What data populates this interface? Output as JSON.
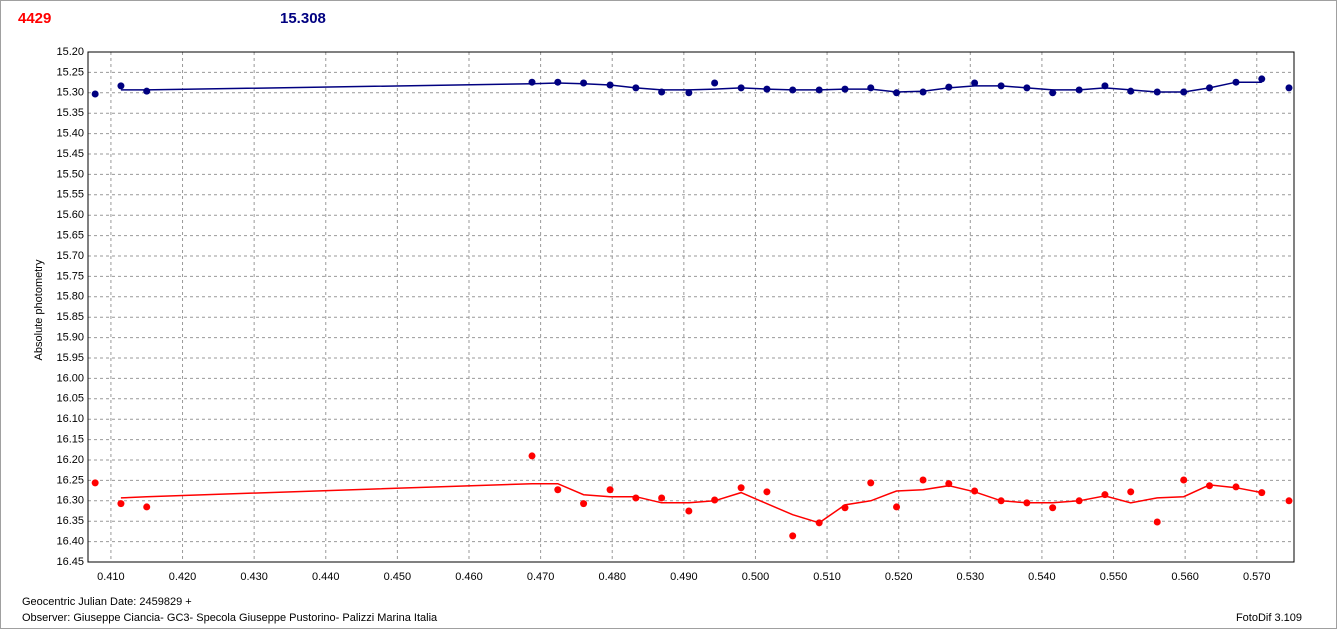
{
  "chart_data": {
    "type": "line",
    "title": "4429",
    "subtitle": "15.308",
    "y_label": "Absolute photometry",
    "x_label": "Geocentric Julian Date: 2459829 +",
    "observer": "Observer: Giuseppe Ciancia- GC3- Specola Giuseppe Pustorino- Palizzi Marina Italia",
    "software": "FotoDif 3.109",
    "grid": true,
    "y_inverted": true,
    "xlim": [
      0.4068,
      0.5752
    ],
    "ylim": [
      15.2,
      16.45
    ],
    "xticks": [
      {
        "value": 0.41,
        "label": "0.410"
      },
      {
        "value": 0.42,
        "label": "0.420"
      },
      {
        "value": 0.43,
        "label": "0.430"
      },
      {
        "value": 0.44,
        "label": "0.440"
      },
      {
        "value": 0.45,
        "label": "0.450"
      },
      {
        "value": 0.46,
        "label": "0.460"
      },
      {
        "value": 0.47,
        "label": "0.470"
      },
      {
        "value": 0.48,
        "label": "0.480"
      },
      {
        "value": 0.49,
        "label": "0.490"
      },
      {
        "value": 0.5,
        "label": "0.500"
      },
      {
        "value": 0.51,
        "label": "0.510"
      },
      {
        "value": 0.52,
        "label": "0.520"
      },
      {
        "value": 0.53,
        "label": "0.530"
      },
      {
        "value": 0.54,
        "label": "0.540"
      },
      {
        "value": 0.55,
        "label": "0.550"
      },
      {
        "value": 0.56,
        "label": "0.560"
      },
      {
        "value": 0.57,
        "label": "0.570"
      }
    ],
    "yticks": [
      {
        "value": 15.2,
        "label": "15.20"
      },
      {
        "value": 15.25,
        "label": "15.25"
      },
      {
        "value": 15.3,
        "label": "15.30"
      },
      {
        "value": 15.35,
        "label": "15.35"
      },
      {
        "value": 15.4,
        "label": "15.40"
      },
      {
        "value": 15.45,
        "label": "15.45"
      },
      {
        "value": 15.5,
        "label": "15.50"
      },
      {
        "value": 15.55,
        "label": "15.55"
      },
      {
        "value": 15.6,
        "label": "15.60"
      },
      {
        "value": 15.65,
        "label": "15.65"
      },
      {
        "value": 15.7,
        "label": "15.70"
      },
      {
        "value": 15.75,
        "label": "15.75"
      },
      {
        "value": 15.8,
        "label": "15.80"
      },
      {
        "value": 15.85,
        "label": "15.85"
      },
      {
        "value": 15.9,
        "label": "15.90"
      },
      {
        "value": 15.95,
        "label": "15.95"
      },
      {
        "value": 16.0,
        "label": "16.00"
      },
      {
        "value": 16.05,
        "label": "16.05"
      },
      {
        "value": 16.1,
        "label": "16.10"
      },
      {
        "value": 16.15,
        "label": "16.15"
      },
      {
        "value": 16.2,
        "label": "16.20"
      },
      {
        "value": 16.25,
        "label": "16.25"
      },
      {
        "value": 16.3,
        "label": "16.30"
      },
      {
        "value": 16.35,
        "label": "16.35"
      },
      {
        "value": 16.4,
        "label": "16.40"
      },
      {
        "value": 16.45,
        "label": "16.45"
      }
    ],
    "x": [
      0.4078,
      0.4114,
      0.415,
      0.4688,
      0.4724,
      0.476,
      0.4797,
      0.4833,
      0.4869,
      0.4907,
      0.4943,
      0.498,
      0.5016,
      0.5052,
      0.5089,
      0.5125,
      0.5161,
      0.5197,
      0.5234,
      0.527,
      0.5306,
      0.5343,
      0.5379,
      0.5415,
      0.5452,
      0.5488,
      0.5524,
      0.5561,
      0.5598,
      0.5634,
      0.5671,
      0.5707,
      0.5745
    ],
    "series": [
      {
        "color": "#000080",
        "values": [
          15.303,
          15.283,
          15.296,
          15.274,
          15.274,
          15.276,
          15.281,
          15.288,
          15.298,
          15.3,
          15.276,
          15.288,
          15.291,
          15.293,
          15.293,
          15.291,
          15.288,
          15.3,
          15.298,
          15.286,
          15.276,
          15.283,
          15.288,
          15.3,
          15.293,
          15.283,
          15.296,
          15.298,
          15.298,
          15.288,
          15.274,
          15.266,
          15.288
        ],
        "trend": [
          null,
          15.293,
          15.293,
          15.278,
          15.276,
          15.278,
          15.281,
          15.288,
          15.293,
          15.293,
          15.291,
          15.288,
          15.291,
          15.293,
          15.293,
          15.291,
          15.291,
          15.298,
          15.296,
          15.288,
          15.283,
          15.283,
          15.288,
          15.293,
          15.293,
          15.288,
          15.293,
          15.298,
          15.298,
          15.288,
          15.274,
          15.274,
          null
        ]
      },
      {
        "color": "#ff0000",
        "values": [
          16.256,
          16.307,
          16.315,
          16.19,
          16.273,
          16.307,
          16.273,
          16.293,
          16.293,
          16.325,
          16.298,
          16.268,
          16.278,
          16.386,
          16.354,
          16.317,
          16.256,
          16.315,
          16.249,
          16.258,
          16.276,
          16.3,
          16.305,
          16.317,
          16.3,
          16.285,
          16.278,
          16.352,
          16.249,
          16.263,
          16.266,
          16.28,
          16.3
        ],
        "trend": [
          null,
          16.293,
          16.29,
          16.258,
          16.258,
          16.285,
          16.29,
          16.29,
          16.305,
          16.305,
          16.3,
          16.28,
          16.307,
          16.334,
          16.354,
          16.31,
          16.3,
          16.276,
          16.273,
          16.263,
          16.278,
          16.3,
          16.305,
          16.305,
          16.3,
          16.288,
          16.305,
          16.293,
          16.29,
          16.261,
          16.268,
          16.28,
          null
        ]
      }
    ]
  }
}
